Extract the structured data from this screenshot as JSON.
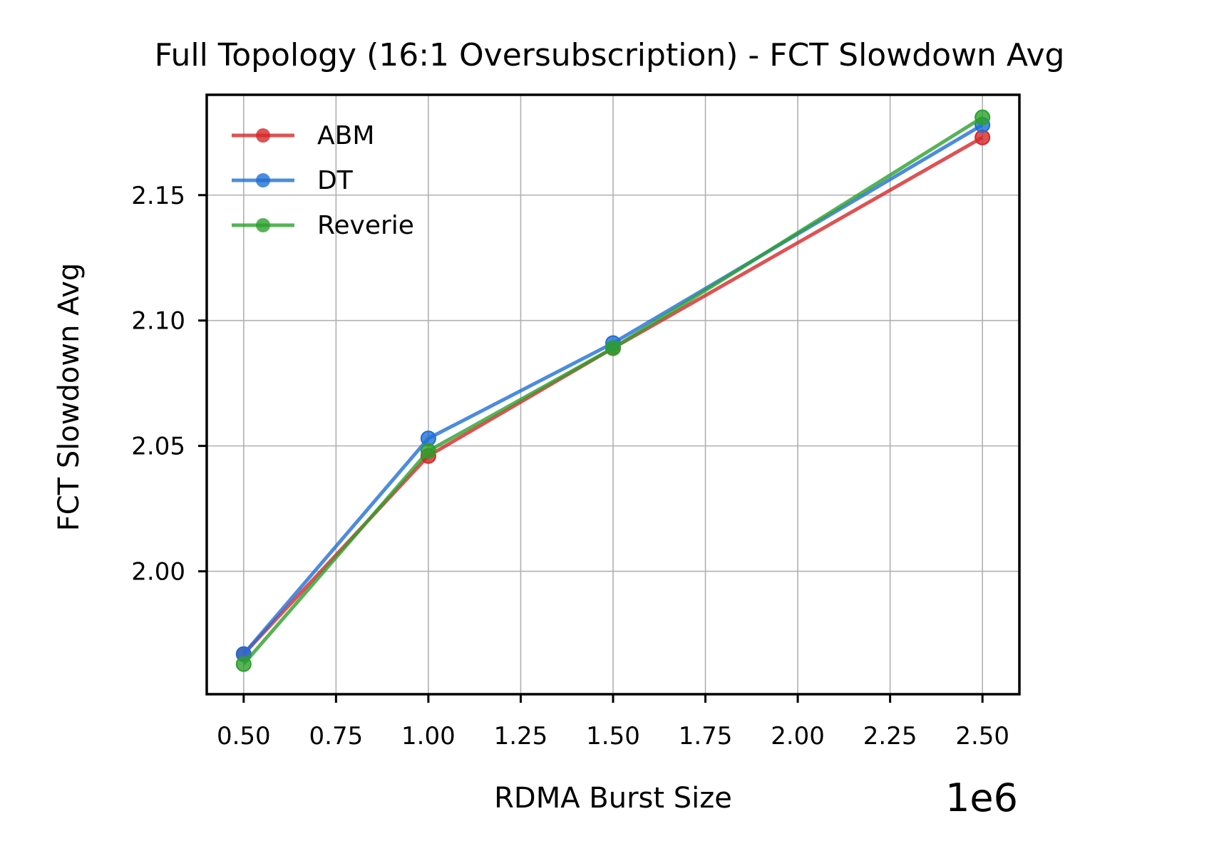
{
  "chart_data": {
    "type": "line",
    "title": "Full Topology (16:1 Oversubscription) - FCT Slowdown Avg",
    "xlabel": "RDMA Burst Size",
    "ylabel": "FCT Slowdown Avg",
    "x_offset_text": "1e6",
    "x": [
      0.5,
      1.0,
      1.5,
      2.5
    ],
    "xlim": [
      0.4,
      2.6
    ],
    "ylim": [
      1.951,
      2.19
    ],
    "xticks": [
      0.5,
      0.75,
      1.0,
      1.25,
      1.5,
      1.75,
      2.0,
      2.25,
      2.5
    ],
    "xtick_labels": [
      "0.50",
      "0.75",
      "1.00",
      "1.25",
      "1.50",
      "1.75",
      "2.00",
      "2.25",
      "2.50"
    ],
    "yticks": [
      2.0,
      2.05,
      2.1,
      2.15
    ],
    "ytick_labels": [
      "2.00",
      "2.05",
      "2.10",
      "2.15"
    ],
    "grid": true,
    "legend_position": "top-left",
    "series": [
      {
        "name": "ABM",
        "color": "#d62728",
        "values": [
          1.967,
          2.046,
          2.089,
          2.173
        ]
      },
      {
        "name": "DT",
        "color": "#1f6fd6",
        "values": [
          1.967,
          2.053,
          2.091,
          2.178
        ]
      },
      {
        "name": "Reverie",
        "color": "#2ca02c",
        "values": [
          1.963,
          2.048,
          2.089,
          2.181
        ]
      }
    ]
  }
}
